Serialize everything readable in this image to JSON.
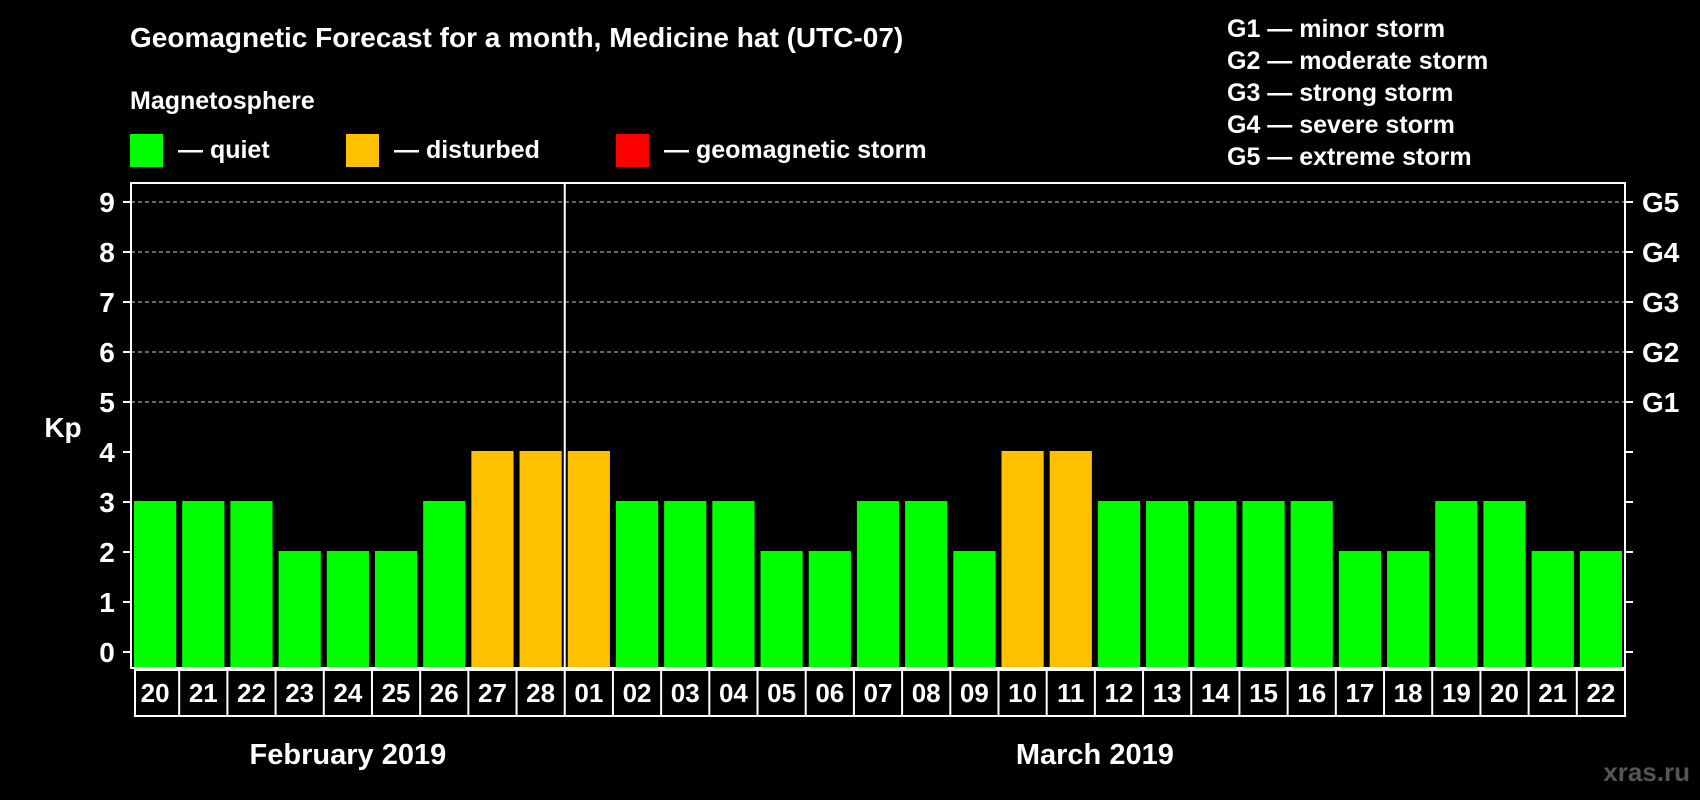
{
  "chart_data": {
    "type": "bar",
    "title": "Geomagnetic Forecast for a month, Medicine hat (UTC-07)",
    "legend_title": "Magnetosphere",
    "legend": [
      {
        "label": "— quiet",
        "color": "#00ff00"
      },
      {
        "label": "— disturbed",
        "color": "#ffc000"
      },
      {
        "label": "— geomagnetic storm",
        "color": "#ff0000"
      }
    ],
    "storm_scale": [
      "G1 — minor storm",
      "G2 — moderate storm",
      "G3 — strong storm",
      "G4 — severe storm",
      "G5 — extreme storm"
    ],
    "ylabel": "Kp",
    "ylim": [
      0,
      9
    ],
    "yticks": [
      "0",
      "1",
      "2",
      "3",
      "4",
      "5",
      "6",
      "7",
      "8",
      "9"
    ],
    "right_ticks": [
      {
        "kp": 5,
        "label": "G1"
      },
      {
        "kp": 6,
        "label": "G2"
      },
      {
        "kp": 7,
        "label": "G3"
      },
      {
        "kp": 8,
        "label": "G4"
      },
      {
        "kp": 9,
        "label": "G5"
      }
    ],
    "grid": "dashed from Kp 5 to 9",
    "categories": [
      "20",
      "21",
      "22",
      "23",
      "24",
      "25",
      "26",
      "27",
      "28",
      "01",
      "02",
      "03",
      "04",
      "05",
      "06",
      "07",
      "08",
      "09",
      "10",
      "11",
      "12",
      "13",
      "14",
      "15",
      "16",
      "17",
      "18",
      "19",
      "20",
      "21",
      "22"
    ],
    "values": [
      3,
      3,
      3,
      2,
      2,
      2,
      3,
      4,
      4,
      4,
      3,
      3,
      3,
      2,
      2,
      3,
      3,
      2,
      4,
      4,
      3,
      3,
      3,
      3,
      3,
      2,
      2,
      3,
      3,
      2,
      2
    ],
    "month_labels": [
      {
        "label": "February 2019",
        "from": 0,
        "to": 8
      },
      {
        "label": "March 2019",
        "from": 9,
        "to": 30
      }
    ],
    "month_divider_after_index": 8,
    "colors": {
      "quiet": "#00ff00",
      "disturbed": "#ffc000",
      "storm": "#ff0000",
      "grid": "#888888",
      "axis": "#ffffff"
    }
  },
  "watermark": "xras.ru"
}
